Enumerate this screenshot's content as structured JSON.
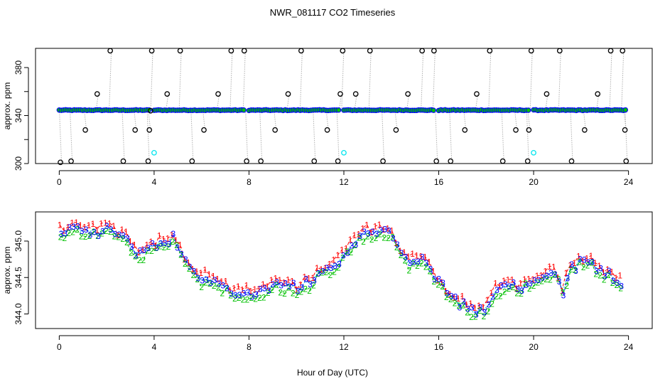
{
  "chart_data": {
    "title": "NWR_081117  CO2 Timeseries",
    "xlabel": "Hour of Day (UTC)",
    "panels": [
      {
        "type": "scatter",
        "ylabel": "approx. ppm",
        "xlim": [
          -1,
          25
        ],
        "ylim": [
          300,
          396
        ],
        "x_ticks": [
          "0",
          "4",
          "8",
          "12",
          "16",
          "20",
          "24"
        ],
        "x_tick_values": [
          0,
          4,
          8,
          12,
          16,
          20,
          24
        ],
        "y_ticks": [
          "300",
          "340",
          "380"
        ],
        "y_tick_values": [
          300,
          340,
          380
        ],
        "extra_y_gridlines": [
          320,
          360
        ],
        "baseline_ppm": 344.5,
        "baseline_segments": [
          [
            0.0,
            3.85
          ],
          [
            4.0,
            7.8
          ],
          [
            8.0,
            11.85
          ],
          [
            12.0,
            15.85
          ],
          [
            16.0,
            19.85
          ],
          [
            20.0,
            23.9
          ]
        ],
        "calibration_points": [
          [
            0.05,
            301
          ],
          [
            0.5,
            302
          ],
          [
            1.1,
            328
          ],
          [
            1.6,
            358
          ],
          [
            2.15,
            394
          ],
          [
            2.7,
            302
          ],
          [
            3.2,
            328
          ],
          [
            3.75,
            302
          ],
          [
            3.8,
            328
          ],
          [
            3.85,
            344
          ],
          [
            3.9,
            394
          ],
          [
            4.55,
            358
          ],
          [
            5.1,
            394
          ],
          [
            5.6,
            302
          ],
          [
            6.1,
            328
          ],
          [
            6.7,
            358
          ],
          [
            7.25,
            394
          ],
          [
            7.8,
            394
          ],
          [
            7.9,
            302
          ],
          [
            8.5,
            302
          ],
          [
            9.1,
            328
          ],
          [
            9.65,
            358
          ],
          [
            10.2,
            394
          ],
          [
            10.75,
            302
          ],
          [
            11.3,
            328
          ],
          [
            11.75,
            302
          ],
          [
            11.85,
            358
          ],
          [
            11.95,
            394
          ],
          [
            12.5,
            358
          ],
          [
            13.1,
            394
          ],
          [
            13.65,
            302
          ],
          [
            14.2,
            328
          ],
          [
            14.7,
            358
          ],
          [
            15.3,
            394
          ],
          [
            15.8,
            394
          ],
          [
            15.9,
            302
          ],
          [
            16.5,
            302
          ],
          [
            17.1,
            328
          ],
          [
            17.6,
            358
          ],
          [
            18.15,
            394
          ],
          [
            18.7,
            302
          ],
          [
            19.25,
            328
          ],
          [
            19.75,
            302
          ],
          [
            19.8,
            328
          ],
          [
            19.9,
            394
          ],
          [
            20.55,
            358
          ],
          [
            21.1,
            394
          ],
          [
            21.6,
            302
          ],
          [
            22.15,
            328
          ],
          [
            22.7,
            358
          ],
          [
            23.25,
            394
          ],
          [
            23.75,
            394
          ],
          [
            23.85,
            328
          ],
          [
            23.9,
            302
          ]
        ],
        "flagged_points": [
          [
            4.0,
            309
          ],
          [
            12.0,
            309
          ],
          [
            20.0,
            309
          ]
        ]
      },
      {
        "type": "scatter",
        "ylabel": "approx. ppm",
        "xlim": [
          -1,
          25
        ],
        "ylim": [
          343.8,
          345.4
        ],
        "x_ticks": [
          "0",
          "4",
          "8",
          "12",
          "16",
          "20",
          "24"
        ],
        "x_tick_values": [
          0,
          4,
          8,
          12,
          16,
          20,
          24
        ],
        "y_ticks": [
          "344.0",
          "344.5",
          "345.0"
        ],
        "y_tick_values": [
          344.0,
          344.5,
          345.0
        ],
        "hour_knots": [
          [
            0,
            345.1
          ],
          [
            0.5,
            345.2
          ],
          [
            1.0,
            345.15
          ],
          [
            1.6,
            345.1
          ],
          [
            2.1,
            345.2
          ],
          [
            2.5,
            345.1
          ],
          [
            3.0,
            344.95
          ],
          [
            3.3,
            344.8
          ],
          [
            3.6,
            344.85
          ],
          [
            4.0,
            344.95
          ],
          [
            4.5,
            345.0
          ],
          [
            4.8,
            345.1
          ],
          [
            5.2,
            344.8
          ],
          [
            5.6,
            344.6
          ],
          [
            6.0,
            344.5
          ],
          [
            6.5,
            344.45
          ],
          [
            7.0,
            344.35
          ],
          [
            7.5,
            344.25
          ],
          [
            8.0,
            344.25
          ],
          [
            8.5,
            344.3
          ],
          [
            9.0,
            344.4
          ],
          [
            9.5,
            344.4
          ],
          [
            10.0,
            344.35
          ],
          [
            10.5,
            344.45
          ],
          [
            11.0,
            344.55
          ],
          [
            11.5,
            344.65
          ],
          [
            12.0,
            344.8
          ],
          [
            12.5,
            345.0
          ],
          [
            13.0,
            345.1
          ],
          [
            13.5,
            345.15
          ],
          [
            14.0,
            345.1
          ],
          [
            14.2,
            344.95
          ],
          [
            14.5,
            344.75
          ],
          [
            15.0,
            344.7
          ],
          [
            15.3,
            344.75
          ],
          [
            15.7,
            344.55
          ],
          [
            16.2,
            344.35
          ],
          [
            16.7,
            344.2
          ],
          [
            17.2,
            344.1
          ],
          [
            17.6,
            344.0
          ],
          [
            18.0,
            344.1
          ],
          [
            18.5,
            344.35
          ],
          [
            19.0,
            344.35
          ],
          [
            19.5,
            344.4
          ],
          [
            20.0,
            344.45
          ],
          [
            20.5,
            344.55
          ],
          [
            21.0,
            344.55
          ],
          [
            21.2,
            344.3
          ],
          [
            21.5,
            344.6
          ],
          [
            22.0,
            344.75
          ],
          [
            22.5,
            344.7
          ],
          [
            23.0,
            344.6
          ],
          [
            23.5,
            344.45
          ],
          [
            23.7,
            344.4
          ]
        ],
        "series": [
          {
            "name": "1",
            "color": "#ff0000",
            "offset": 0.06
          },
          {
            "name": "2",
            "color": "#00c000",
            "offset": -0.05
          },
          {
            "name": "3",
            "color": "#0000ff",
            "offset": 0.0
          }
        ],
        "mean_line_color": "#00bfbf"
      }
    ]
  },
  "colors": {
    "baseline_point_edge": "#0000ff",
    "baseline_point_fill": "#00c000",
    "calibration_point_edge": "#000000",
    "flagged_point_edge": "#00e5ee",
    "connector_line": "#b0b0b0",
    "axis": "#000000"
  }
}
